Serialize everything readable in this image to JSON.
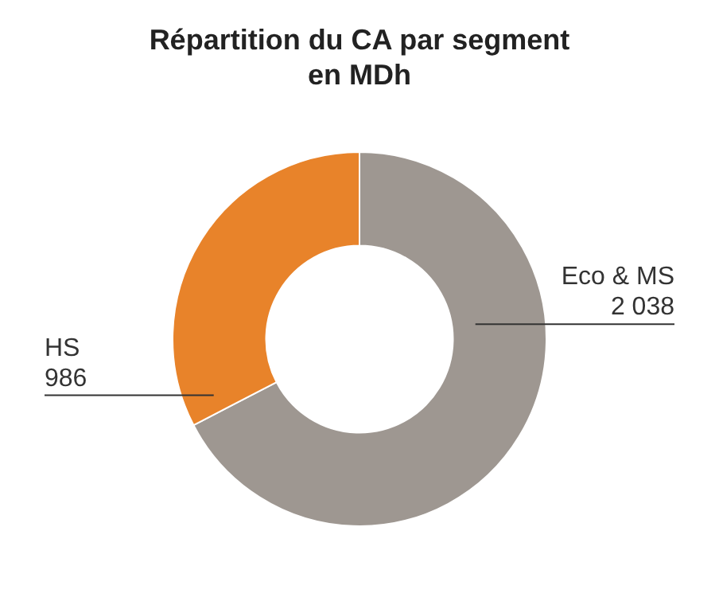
{
  "chart_data": {
    "type": "donut",
    "title": "Répartition du CA par segment en MDh",
    "categories": [
      "Eco & MS",
      "HS"
    ],
    "values": [
      2038,
      986
    ],
    "value_labels": [
      "2 038",
      "986"
    ],
    "colors": [
      "#9e9791",
      "#e8832a"
    ],
    "legend": false
  }
}
